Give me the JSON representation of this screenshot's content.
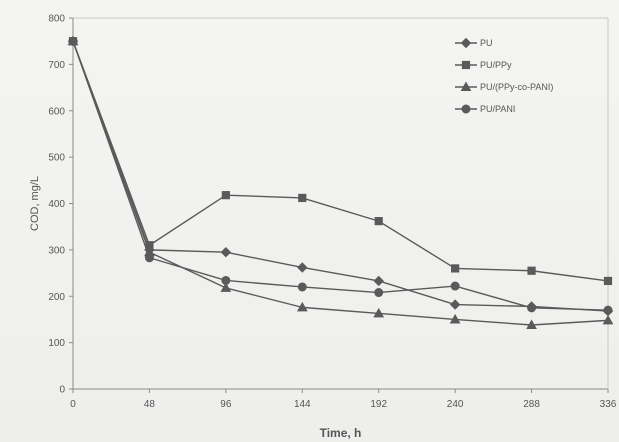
{
  "chart_data": {
    "type": "line",
    "title": "",
    "xlabel": "Time, h",
    "ylabel": "COD, mg/L",
    "x": [
      0,
      48,
      96,
      144,
      192,
      240,
      288,
      336
    ],
    "xlim": [
      0,
      336
    ],
    "ylim": [
      0,
      800
    ],
    "x_ticks": [
      0,
      48,
      96,
      144,
      192,
      240,
      288,
      336
    ],
    "y_ticks": [
      0,
      100,
      200,
      300,
      400,
      500,
      600,
      700,
      800
    ],
    "grid": false,
    "legend_position": "top-right",
    "line_color": "#5a5a5a",
    "series": [
      {
        "name": "PU",
        "marker": "diamond",
        "values": [
          750,
          300,
          295,
          262,
          233,
          182,
          178,
          168
        ]
      },
      {
        "name": "PU/PPy",
        "marker": "square",
        "values": [
          750,
          310,
          418,
          412,
          362,
          260,
          255,
          233
        ]
      },
      {
        "name": "PU/(PPy-co-PANI)",
        "marker": "triangle",
        "values": [
          750,
          295,
          218,
          176,
          163,
          150,
          138,
          148
        ]
      },
      {
        "name": "PU/PANI",
        "marker": "circle",
        "values": [
          750,
          283,
          234,
          220,
          208,
          222,
          175,
          170
        ]
      }
    ]
  }
}
